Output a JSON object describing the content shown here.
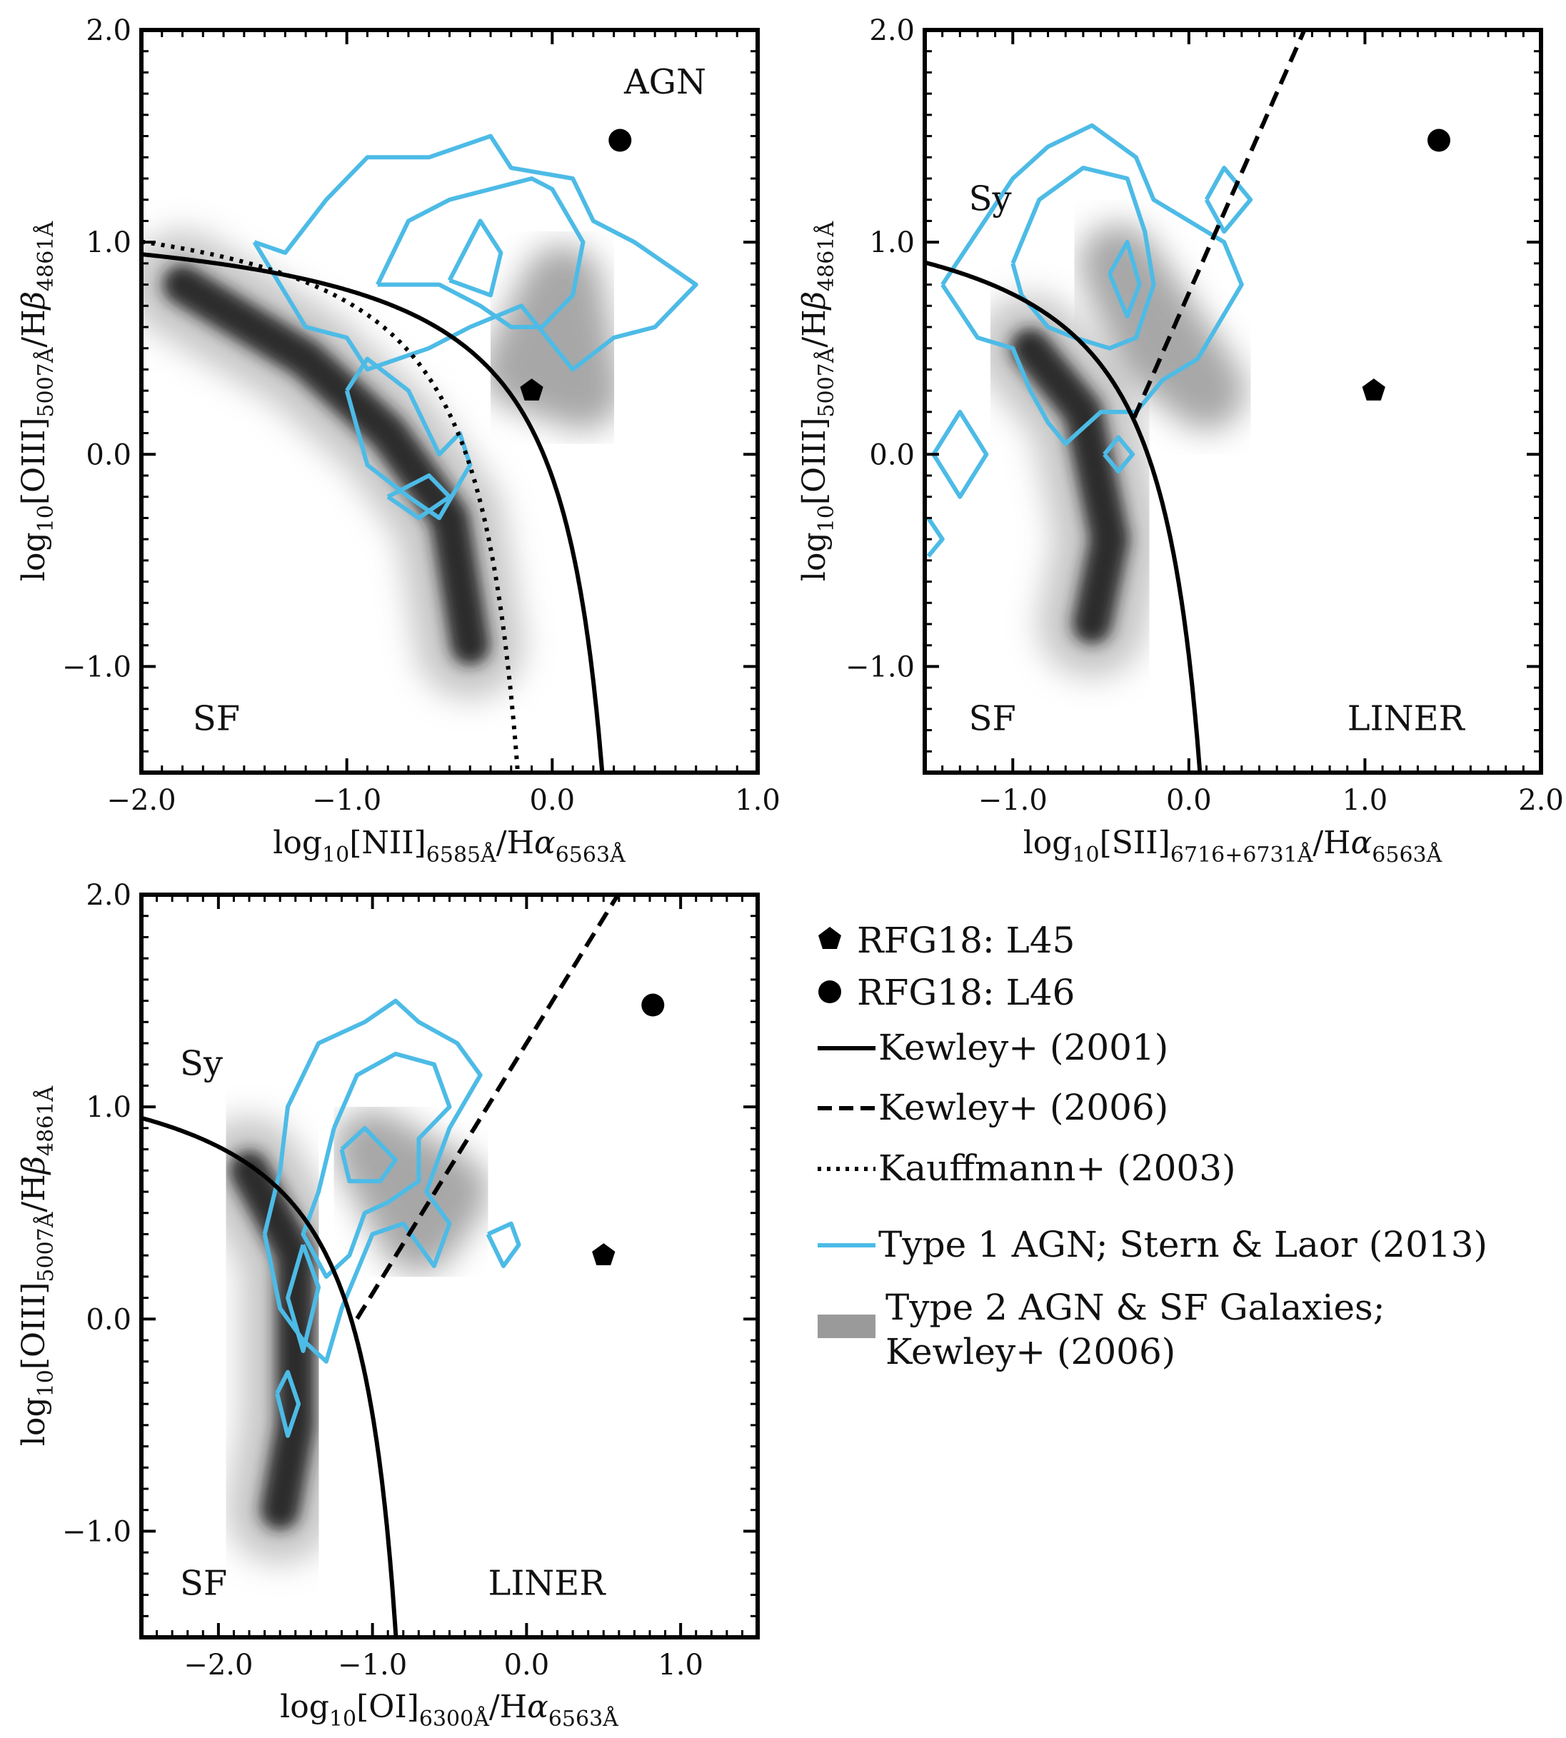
{
  "chart_data": [
    {
      "id": "nii",
      "type": "scatter",
      "title": "",
      "xlabel": {
        "main": "log",
        "sub1": "10",
        "mid": "[NII]",
        "sub2": "6585Å",
        "tail": "/H",
        "greek": "α",
        "sub3": "6563Å"
      },
      "ylabel": {
        "main": "log",
        "sub1": "10",
        "mid": "[OIII]",
        "sub2": "5007Å",
        "tail": "/H",
        "greek": "β",
        "sub3": "4861Å"
      },
      "xlim": [
        -2.0,
        1.0
      ],
      "ylim": [
        -1.5,
        2.0
      ],
      "xticks": [
        -2.0,
        -1.0,
        0.0,
        1.0
      ],
      "xtick_labels": [
        "−2.0",
        "−1.0",
        "0.0",
        "1.0"
      ],
      "yticks": [
        -1.0,
        0.0,
        1.0,
        2.0
      ],
      "ytick_labels": [
        "−1.0",
        "0.0",
        "1.0",
        "2.0"
      ],
      "region_labels": [
        {
          "text": "AGN",
          "x": 0.35,
          "y": 1.7
        },
        {
          "text": "SF",
          "x": -1.75,
          "y": -1.3
        }
      ],
      "points": [
        {
          "series": "RFG18: L46",
          "marker": "circle",
          "x": 0.33,
          "y": 1.48
        },
        {
          "series": "RFG18: L45",
          "marker": "pentagon",
          "x": -0.1,
          "y": 0.3
        }
      ],
      "lines": [
        {
          "series": "Kewley+ (2001)",
          "style": "solid",
          "fn": "kewley01_nii"
        },
        {
          "series": "Kauffmann+ (2003)",
          "style": "dotted",
          "fn": "kauffmann03"
        }
      ],
      "density_ridge": [
        [
          -1.8,
          0.8
        ],
        [
          -1.2,
          0.45
        ],
        [
          -0.8,
          0.1
        ],
        [
          -0.5,
          -0.3
        ],
        [
          -0.4,
          -0.9
        ]
      ],
      "density_cloud": [
        [
          -0.15,
          0.4
        ],
        [
          0.05,
          0.8
        ],
        [
          0.15,
          0.3
        ]
      ],
      "contours": [
        [
          [
            -1.45,
            1.0
          ],
          [
            -1.3,
            0.95
          ],
          [
            -1.1,
            1.2
          ],
          [
            -0.9,
            1.4
          ],
          [
            -0.6,
            1.4
          ],
          [
            -0.3,
            1.5
          ],
          [
            -0.2,
            1.35
          ],
          [
            0.1,
            1.3
          ],
          [
            0.2,
            1.1
          ],
          [
            0.4,
            1.0
          ],
          [
            0.7,
            0.8
          ],
          [
            0.5,
            0.6
          ],
          [
            0.3,
            0.55
          ],
          [
            0.1,
            0.4
          ],
          [
            -0.15,
            0.7
          ],
          [
            -0.4,
            0.6
          ],
          [
            -0.6,
            0.5
          ],
          [
            -0.9,
            0.4
          ],
          [
            -1.0,
            0.55
          ],
          [
            -1.2,
            0.6
          ],
          [
            -1.45,
            1.0
          ]
        ],
        [
          [
            -0.85,
            0.8
          ],
          [
            -0.7,
            1.1
          ],
          [
            -0.5,
            1.2
          ],
          [
            -0.3,
            1.25
          ],
          [
            -0.1,
            1.3
          ],
          [
            0.0,
            1.25
          ],
          [
            0.15,
            1.0
          ],
          [
            0.1,
            0.75
          ],
          [
            -0.05,
            0.6
          ],
          [
            -0.2,
            0.6
          ],
          [
            -0.35,
            0.7
          ],
          [
            -0.55,
            0.8
          ],
          [
            -0.85,
            0.8
          ]
        ],
        [
          [
            -0.5,
            0.82
          ],
          [
            -0.35,
            1.1
          ],
          [
            -0.25,
            0.95
          ],
          [
            -0.3,
            0.75
          ],
          [
            -0.5,
            0.82
          ]
        ],
        [
          [
            -1.0,
            0.3
          ],
          [
            -0.9,
            0.45
          ],
          [
            -0.7,
            0.3
          ],
          [
            -0.55,
            0.0
          ],
          [
            -0.45,
            0.1
          ],
          [
            -0.4,
            -0.05
          ],
          [
            -0.55,
            -0.3
          ],
          [
            -0.7,
            -0.2
          ],
          [
            -0.9,
            -0.05
          ],
          [
            -1.0,
            0.3
          ]
        ],
        [
          [
            -0.8,
            -0.2
          ],
          [
            -0.6,
            -0.1
          ],
          [
            -0.5,
            -0.2
          ],
          [
            -0.65,
            -0.3
          ],
          [
            -0.8,
            -0.2
          ]
        ]
      ]
    },
    {
      "id": "sii",
      "type": "scatter",
      "title": "",
      "xlabel": {
        "main": "log",
        "sub1": "10",
        "mid": "[SII]",
        "sub2": "6716+6731Å",
        "tail": "/H",
        "greek": "α",
        "sub3": "6563Å"
      },
      "ylabel": {
        "main": "log",
        "sub1": "10",
        "mid": "[OIII]",
        "sub2": "5007Å",
        "tail": "/H",
        "greek": "β",
        "sub3": "4861Å"
      },
      "xlim": [
        -1.5,
        2.0
      ],
      "ylim": [
        -1.5,
        2.0
      ],
      "xticks": [
        -1.0,
        0.0,
        1.0,
        2.0
      ],
      "xtick_labels": [
        "−1.0",
        "0.0",
        "1.0",
        "2.0"
      ],
      "yticks": [
        -1.0,
        0.0,
        1.0,
        2.0
      ],
      "ytick_labels": [
        "−1.0",
        "0.0",
        "1.0",
        "2.0"
      ],
      "region_labels": [
        {
          "text": "Sy",
          "x": -1.25,
          "y": 1.15
        },
        {
          "text": "SF",
          "x": -1.25,
          "y": -1.3
        },
        {
          "text": "LINER",
          "x": 0.9,
          "y": -1.3
        }
      ],
      "points": [
        {
          "series": "RFG18: L46",
          "marker": "circle",
          "x": 1.42,
          "y": 1.48
        },
        {
          "series": "RFG18: L45",
          "marker": "pentagon",
          "x": 1.05,
          "y": 0.3
        }
      ],
      "lines": [
        {
          "series": "Kewley+ (2001)",
          "style": "solid",
          "fn": "kewley01_sii"
        },
        {
          "series": "Kewley+ (2006)",
          "style": "dashed",
          "fn": "kewley06_sii"
        }
      ],
      "density_ridge": [
        [
          -0.9,
          0.5
        ],
        [
          -0.6,
          0.2
        ],
        [
          -0.45,
          -0.4
        ],
        [
          -0.55,
          -0.8
        ]
      ],
      "density_cloud": [
        [
          -0.4,
          0.9
        ],
        [
          -0.2,
          0.5
        ],
        [
          0.1,
          0.3
        ]
      ],
      "contours": [
        [
          [
            -1.4,
            0.8
          ],
          [
            -1.2,
            1.05
          ],
          [
            -1.0,
            1.3
          ],
          [
            -0.8,
            1.45
          ],
          [
            -0.55,
            1.55
          ],
          [
            -0.3,
            1.4
          ],
          [
            -0.2,
            1.2
          ],
          [
            0.0,
            1.1
          ],
          [
            0.2,
            1.0
          ],
          [
            0.3,
            0.8
          ],
          [
            0.05,
            0.45
          ],
          [
            -0.15,
            0.35
          ],
          [
            -0.3,
            0.2
          ],
          [
            -0.5,
            0.2
          ],
          [
            -0.7,
            0.05
          ],
          [
            -0.8,
            0.15
          ],
          [
            -0.9,
            0.3
          ],
          [
            -1.0,
            0.5
          ],
          [
            -1.2,
            0.55
          ],
          [
            -1.4,
            0.8
          ]
        ],
        [
          [
            -1.0,
            0.9
          ],
          [
            -0.85,
            1.2
          ],
          [
            -0.6,
            1.35
          ],
          [
            -0.35,
            1.3
          ],
          [
            -0.25,
            1.05
          ],
          [
            -0.2,
            0.8
          ],
          [
            -0.3,
            0.55
          ],
          [
            -0.45,
            0.5
          ],
          [
            -0.65,
            0.55
          ],
          [
            -0.8,
            0.6
          ],
          [
            -0.95,
            0.75
          ],
          [
            -1.0,
            0.9
          ]
        ],
        [
          [
            -0.45,
            0.85
          ],
          [
            -0.35,
            1.0
          ],
          [
            -0.28,
            0.8
          ],
          [
            -0.35,
            0.65
          ],
          [
            -0.45,
            0.85
          ]
        ],
        [
          [
            0.1,
            1.2
          ],
          [
            0.2,
            1.35
          ],
          [
            0.35,
            1.2
          ],
          [
            0.2,
            1.05
          ],
          [
            0.1,
            1.2
          ]
        ],
        [
          [
            -1.45,
            0.0
          ],
          [
            -1.3,
            0.2
          ],
          [
            -1.15,
            0.0
          ],
          [
            -1.3,
            -0.2
          ],
          [
            -1.45,
            0.0
          ]
        ],
        [
          [
            -0.48,
            0.0
          ],
          [
            -0.4,
            0.08
          ],
          [
            -0.32,
            0.0
          ],
          [
            -0.4,
            -0.08
          ],
          [
            -0.48,
            0.0
          ]
        ],
        [
          [
            -1.48,
            -0.3
          ],
          [
            -1.4,
            -0.4
          ],
          [
            -1.48,
            -0.48
          ]
        ]
      ]
    },
    {
      "id": "oi",
      "type": "scatter",
      "title": "",
      "xlabel": {
        "main": "log",
        "sub1": "10",
        "mid": "[OI]",
        "sub2": "6300Å",
        "tail": "/H",
        "greek": "α",
        "sub3": "6563Å"
      },
      "ylabel": {
        "main": "log",
        "sub1": "10",
        "mid": "[OIII]",
        "sub2": "5007Å",
        "tail": "/H",
        "greek": "β",
        "sub3": "4861Å"
      },
      "xlim": [
        -2.5,
        1.5
      ],
      "ylim": [
        -1.5,
        2.0
      ],
      "xticks": [
        -2.0,
        -1.0,
        0.0,
        1.0
      ],
      "xtick_labels": [
        "−2.0",
        "−1.0",
        "0.0",
        "1.0"
      ],
      "yticks": [
        -1.0,
        0.0,
        1.0,
        2.0
      ],
      "ytick_labels": [
        "−1.0",
        "0.0",
        "1.0",
        "2.0"
      ],
      "region_labels": [
        {
          "text": "Sy",
          "x": -2.25,
          "y": 1.15
        },
        {
          "text": "SF",
          "x": -2.25,
          "y": -1.3
        },
        {
          "text": "LINER",
          "x": -0.25,
          "y": -1.3
        }
      ],
      "points": [
        {
          "series": "RFG18: L46",
          "marker": "circle",
          "x": 0.82,
          "y": 1.48
        },
        {
          "series": "RFG18: L45",
          "marker": "pentagon",
          "x": 0.5,
          "y": 0.3
        }
      ],
      "lines": [
        {
          "series": "Kewley+ (2001)",
          "style": "solid",
          "fn": "kewley01_oi"
        },
        {
          "series": "Kewley+ (2006)",
          "style": "dashed",
          "fn": "kewley06_oi"
        }
      ],
      "density_ridge": [
        [
          -1.8,
          0.7
        ],
        [
          -1.5,
          0.3
        ],
        [
          -1.5,
          -0.5
        ],
        [
          -1.6,
          -0.9
        ]
      ],
      "density_cloud": [
        [
          -1.0,
          0.8
        ],
        [
          -0.7,
          0.4
        ],
        [
          -0.5,
          0.6
        ]
      ],
      "contours": [
        [
          [
            -1.7,
            0.4
          ],
          [
            -1.6,
            0.7
          ],
          [
            -1.55,
            1.0
          ],
          [
            -1.35,
            1.3
          ],
          [
            -1.05,
            1.4
          ],
          [
            -0.85,
            1.5
          ],
          [
            -0.7,
            1.4
          ],
          [
            -0.45,
            1.3
          ],
          [
            -0.3,
            1.15
          ],
          [
            -0.5,
            0.9
          ],
          [
            -0.65,
            0.6
          ],
          [
            -0.5,
            0.45
          ],
          [
            -0.6,
            0.25
          ],
          [
            -0.8,
            0.45
          ],
          [
            -1.0,
            0.4
          ],
          [
            -1.2,
            0.05
          ],
          [
            -1.3,
            -0.2
          ],
          [
            -1.45,
            -0.1
          ],
          [
            -1.6,
            0.05
          ],
          [
            -1.7,
            0.4
          ]
        ],
        [
          [
            -1.25,
            0.9
          ],
          [
            -1.1,
            1.15
          ],
          [
            -0.85,
            1.25
          ],
          [
            -0.6,
            1.2
          ],
          [
            -0.5,
            1.0
          ],
          [
            -0.7,
            0.85
          ],
          [
            -0.7,
            0.65
          ],
          [
            -0.9,
            0.55
          ],
          [
            -1.05,
            0.5
          ],
          [
            -1.15,
            0.3
          ],
          [
            -1.3,
            0.2
          ],
          [
            -1.45,
            0.4
          ],
          [
            -1.35,
            0.6
          ],
          [
            -1.25,
            0.9
          ]
        ],
        [
          [
            -1.2,
            0.8
          ],
          [
            -1.05,
            0.9
          ],
          [
            -0.85,
            0.75
          ],
          [
            -0.95,
            0.65
          ],
          [
            -1.15,
            0.65
          ],
          [
            -1.2,
            0.8
          ]
        ],
        [
          [
            -1.45,
            0.35
          ],
          [
            -1.35,
            0.15
          ],
          [
            -1.45,
            -0.15
          ],
          [
            -1.55,
            0.1
          ],
          [
            -1.45,
            0.35
          ]
        ],
        [
          [
            -0.25,
            0.4
          ],
          [
            -0.1,
            0.45
          ],
          [
            -0.05,
            0.35
          ],
          [
            -0.15,
            0.25
          ],
          [
            -0.25,
            0.4
          ]
        ],
        [
          [
            -1.62,
            -0.35
          ],
          [
            -1.55,
            -0.25
          ],
          [
            -1.48,
            -0.4
          ],
          [
            -1.55,
            -0.55
          ],
          [
            -1.62,
            -0.35
          ]
        ]
      ]
    }
  ],
  "legend": [
    {
      "label": "RFG18: L45",
      "marker": "pentagon"
    },
    {
      "label": "RFG18: L46",
      "marker": "circle"
    },
    {
      "label": "Kewley+ (2001)",
      "marker": "solid"
    },
    {
      "label": "Kewley+ (2006)",
      "marker": "dashed"
    },
    {
      "label": "Kauffmann+ (2003)",
      "marker": "dotted"
    },
    {
      "label": "Type 1 AGN; Stern & Laor (2013)",
      "marker": "cyan-line"
    },
    {
      "label": "Type 2 AGN & SF Galaxies;",
      "label2": "Kewley+ (2006)",
      "marker": "gray-patch"
    }
  ],
  "colors": {
    "axes": "#000000",
    "contour": "#4dbbe6",
    "density": "#7a7a7a",
    "marker": "#000000"
  }
}
